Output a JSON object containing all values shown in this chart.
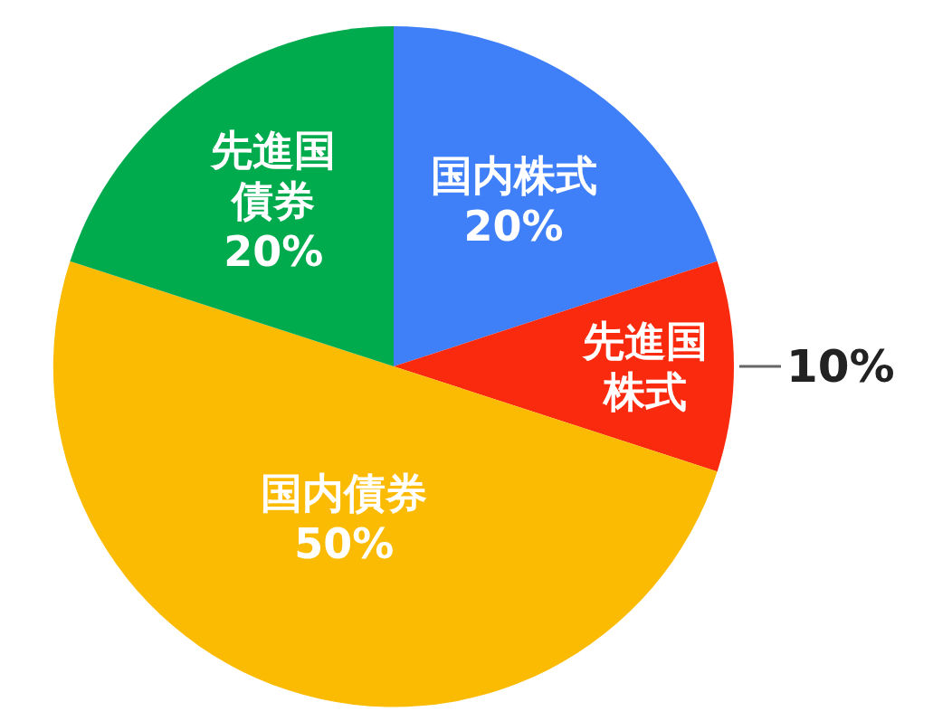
{
  "chart_data": {
    "type": "pie",
    "categories": [
      "国内株式",
      "先進国株式",
      "国内債券",
      "先進国債券"
    ],
    "values": [
      20,
      10,
      50,
      20
    ],
    "colors": [
      "#3f7ff8",
      "#fa2a0f",
      "#fbbb03",
      "#00ab4e"
    ],
    "value_labels": [
      "20%",
      "10%",
      "50%",
      "20%"
    ]
  }
}
